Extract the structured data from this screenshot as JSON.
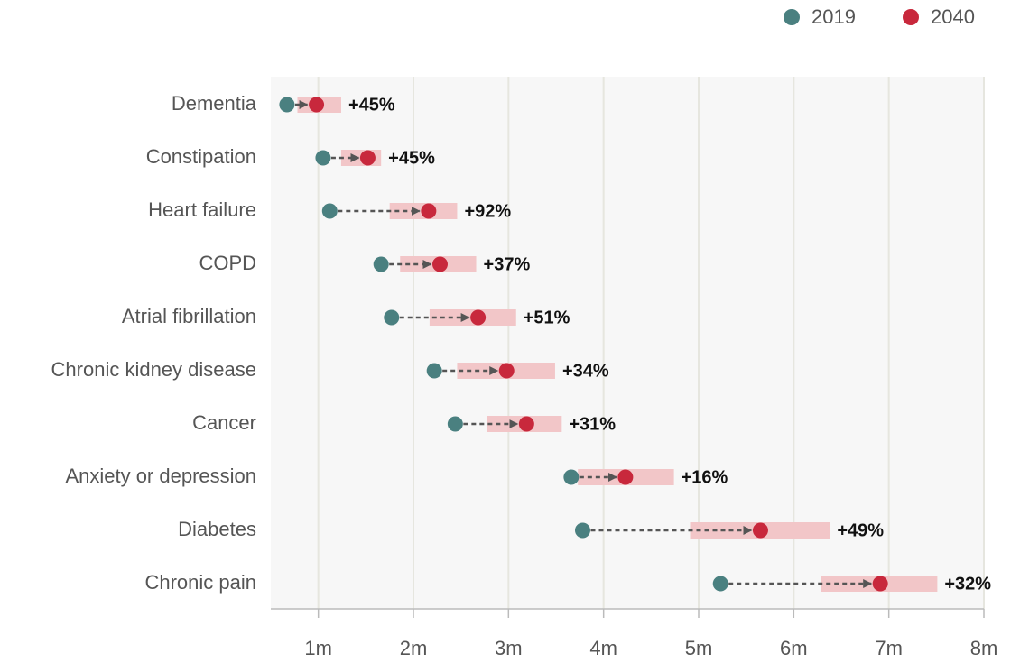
{
  "chart_data": {
    "type": "dumbbell",
    "categories": [
      "Dementia",
      "Constipation",
      "Heart failure",
      "COPD",
      "Atrial fibrillation",
      "Chronic kidney disease",
      "Cancer",
      "Anxiety or depression",
      "Diabetes",
      "Chronic pain"
    ],
    "series": [
      {
        "name": "2019",
        "color": "#4a8080",
        "values": [
          0.67,
          1.05,
          1.12,
          1.66,
          1.77,
          2.22,
          2.44,
          3.66,
          3.78,
          5.23
        ]
      },
      {
        "name": "2040",
        "color": "#c8283c",
        "values": [
          0.98,
          1.52,
          2.16,
          2.28,
          2.68,
          2.98,
          3.19,
          4.23,
          5.65,
          6.91
        ],
        "range_low": [
          0.78,
          1.24,
          1.75,
          1.86,
          2.17,
          2.46,
          2.77,
          3.73,
          4.91,
          6.29
        ],
        "range_high": [
          1.24,
          1.66,
          2.46,
          2.66,
          3.08,
          3.49,
          3.56,
          4.74,
          6.38,
          7.51
        ],
        "range_color": "#f2c6c8"
      }
    ],
    "changes": {
      "values": [
        45,
        45,
        92,
        37,
        51,
        34,
        31,
        16,
        49,
        32
      ],
      "value_labels": [
        "+45%",
        "+45%",
        "+92%",
        "+37%",
        "+51%",
        "+34%",
        "+31%",
        "+16%",
        "+49%",
        "+32%"
      ]
    },
    "xlim": [
      0.5,
      8
    ],
    "xticks": [
      {
        "value": 1,
        "label": "1m"
      },
      {
        "value": 2,
        "label": "2m"
      },
      {
        "value": 3,
        "label": "3m"
      },
      {
        "value": 4,
        "label": "4m"
      },
      {
        "value": 5,
        "label": "5m"
      },
      {
        "value": 6,
        "label": "6m"
      },
      {
        "value": 7,
        "label": "7m"
      },
      {
        "value": 8,
        "label": "8m"
      }
    ],
    "grid": true,
    "legend": "top-right"
  }
}
